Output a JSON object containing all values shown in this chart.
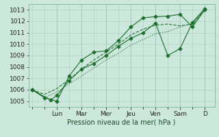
{
  "bg_color": "#cce8dc",
  "grid_color": "#aaccbb",
  "line_color": "#1a6b2a",
  "xlabel": "Pression niveau de la mer( hPa )",
  "ylim": [
    1004.5,
    1013.5
  ],
  "yticks": [
    1005,
    1006,
    1007,
    1008,
    1009,
    1010,
    1011,
    1012,
    1013
  ],
  "day_labels": [
    "Lun",
    "Mar",
    "Mer",
    "Jeu",
    "Ven",
    "Sam",
    "D"
  ],
  "day_positions": [
    2.0,
    4.0,
    6.0,
    8.0,
    10.0,
    12.0,
    14.0
  ],
  "xlim": [
    -0.3,
    14.8
  ],
  "num_points": 15,
  "series": [
    {
      "x": [
        0,
        1,
        2,
        3,
        4,
        5,
        6,
        7,
        8,
        9,
        10,
        11,
        12,
        13,
        14
      ],
      "y": [
        1006.0,
        1005.3,
        1005.0,
        1007.2,
        1008.6,
        1009.3,
        1009.4,
        1010.3,
        1011.5,
        1012.3,
        1012.4,
        1012.45,
        1012.6,
        1011.5,
        1013.0
      ],
      "style": "-",
      "marker": "D",
      "markersize": 2.5,
      "lw": 0.9
    },
    {
      "x": [
        0,
        1,
        2,
        3,
        4,
        5,
        6,
        7,
        8,
        9,
        10,
        11,
        12,
        13,
        14
      ],
      "y": [
        1006.0,
        1005.6,
        1006.1,
        1006.9,
        1007.8,
        1008.6,
        1009.3,
        1010.0,
        1010.8,
        1011.3,
        1011.65,
        1011.75,
        1011.6,
        1011.75,
        1013.0
      ],
      "style": "--",
      "marker": null,
      "markersize": 0,
      "lw": 0.85
    },
    {
      "x": [
        0,
        1.5,
        2,
        3,
        4,
        5,
        6,
        7,
        8,
        9,
        10,
        11,
        12,
        13,
        14
      ],
      "y": [
        1006.0,
        1005.1,
        1005.5,
        1006.8,
        1007.8,
        1008.3,
        1009.0,
        1009.8,
        1010.5,
        1011.0,
        1011.85,
        1009.0,
        1009.6,
        1011.9,
        1013.1
      ],
      "style": "-",
      "marker": "D",
      "markersize": 2.5,
      "lw": 0.9
    },
    {
      "x": [
        0,
        1,
        2,
        3,
        4,
        5,
        6,
        7,
        8,
        9,
        10,
        11,
        12,
        13,
        14
      ],
      "y": [
        1006.0,
        1005.3,
        1005.8,
        1006.5,
        1007.2,
        1007.9,
        1008.6,
        1009.2,
        1009.9,
        1010.4,
        1010.9,
        1011.1,
        1011.5,
        1011.8,
        1013.0
      ],
      "style": ":",
      "marker": null,
      "markersize": 0,
      "lw": 0.85
    }
  ]
}
